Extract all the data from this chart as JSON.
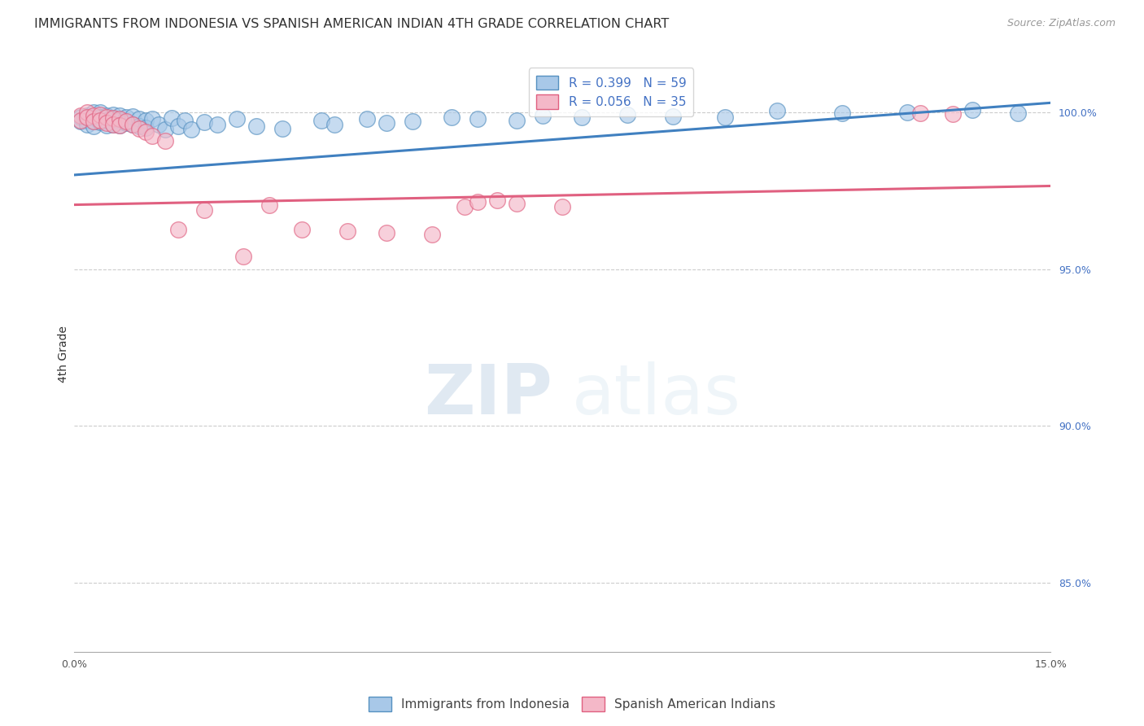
{
  "title": "IMMIGRANTS FROM INDONESIA VS SPANISH AMERICAN INDIAN 4TH GRADE CORRELATION CHART",
  "source": "Source: ZipAtlas.com",
  "ylabel": "4th Grade",
  "ylabel_right_labels": [
    "100.0%",
    "95.0%",
    "90.0%",
    "85.0%"
  ],
  "ylabel_right_values": [
    1.0,
    0.95,
    0.9,
    0.85
  ],
  "xmin": 0.0,
  "xmax": 0.15,
  "ymin": 0.828,
  "ymax": 1.018,
  "watermark_zip": "ZIP",
  "watermark_atlas": "atlas",
  "legend_1_label": "R = 0.399   N = 59",
  "legend_2_label": "R = 0.056   N = 35",
  "legend_bottom_1": "Immigrants from Indonesia",
  "legend_bottom_2": "Spanish American Indians",
  "blue_color": "#a8c8e8",
  "pink_color": "#f4b8c8",
  "blue_edge_color": "#5590c0",
  "pink_edge_color": "#e06080",
  "blue_line_color": "#4080c0",
  "pink_line_color": "#e06080",
  "blue_line_x0": 0.0,
  "blue_line_y0": 0.98,
  "blue_line_x1": 0.15,
  "blue_line_y1": 1.003,
  "pink_line_x0": 0.0,
  "pink_line_y0": 0.9705,
  "pink_line_x1": 0.15,
  "pink_line_y1": 0.9765,
  "grid_color": "#cccccc",
  "blue_scatter_x": [
    0.001,
    0.001,
    0.002,
    0.002,
    0.002,
    0.003,
    0.003,
    0.003,
    0.003,
    0.004,
    0.004,
    0.004,
    0.005,
    0.005,
    0.005,
    0.006,
    0.006,
    0.006,
    0.007,
    0.007,
    0.007,
    0.008,
    0.008,
    0.009,
    0.009,
    0.01,
    0.01,
    0.011,
    0.011,
    0.012,
    0.013,
    0.014,
    0.015,
    0.016,
    0.017,
    0.018,
    0.02,
    0.022,
    0.025,
    0.028,
    0.032,
    0.038,
    0.04,
    0.045,
    0.048,
    0.052,
    0.058,
    0.062,
    0.068,
    0.072,
    0.078,
    0.085,
    0.092,
    0.1,
    0.108,
    0.118,
    0.128,
    0.138,
    0.145
  ],
  "blue_scatter_y": [
    0.9985,
    0.997,
    0.999,
    0.9975,
    0.996,
    1.0,
    0.9985,
    0.997,
    0.9955,
    1.0,
    0.9985,
    0.9968,
    0.999,
    0.9975,
    0.9958,
    0.9992,
    0.9978,
    0.996,
    0.999,
    0.9975,
    0.9958,
    0.9985,
    0.9965,
    0.9988,
    0.9962,
    0.998,
    0.9955,
    0.9975,
    0.995,
    0.9978,
    0.996,
    0.9945,
    0.9982,
    0.9955,
    0.9975,
    0.9945,
    0.9968,
    0.996,
    0.9978,
    0.9955,
    0.9948,
    0.9975,
    0.996,
    0.998,
    0.9965,
    0.997,
    0.9985,
    0.9978,
    0.9975,
    0.999,
    0.9985,
    0.9992,
    0.9988,
    0.9985,
    1.0005,
    0.9998,
    1.0,
    1.0008,
    0.9998
  ],
  "pink_scatter_x": [
    0.001,
    0.001,
    0.002,
    0.002,
    0.003,
    0.003,
    0.004,
    0.004,
    0.005,
    0.005,
    0.006,
    0.006,
    0.007,
    0.007,
    0.008,
    0.009,
    0.01,
    0.011,
    0.012,
    0.014,
    0.016,
    0.02,
    0.026,
    0.03,
    0.035,
    0.042,
    0.048,
    0.055,
    0.06,
    0.062,
    0.065,
    0.068,
    0.075,
    0.13,
    0.135
  ],
  "pink_scatter_y": [
    0.999,
    0.9975,
    1.0,
    0.9985,
    0.999,
    0.9972,
    0.9992,
    0.9975,
    0.9985,
    0.9965,
    0.9982,
    0.9962,
    0.9978,
    0.9958,
    0.9972,
    0.996,
    0.9948,
    0.9938,
    0.9925,
    0.9908,
    0.9625,
    0.9688,
    0.954,
    0.9705,
    0.9625,
    0.962,
    0.9615,
    0.961,
    0.97,
    0.9715,
    0.972,
    0.971,
    0.97,
    0.9998,
    0.9995
  ],
  "title_fontsize": 11.5,
  "source_fontsize": 9,
  "tick_fontsize": 9,
  "legend_fontsize": 11
}
